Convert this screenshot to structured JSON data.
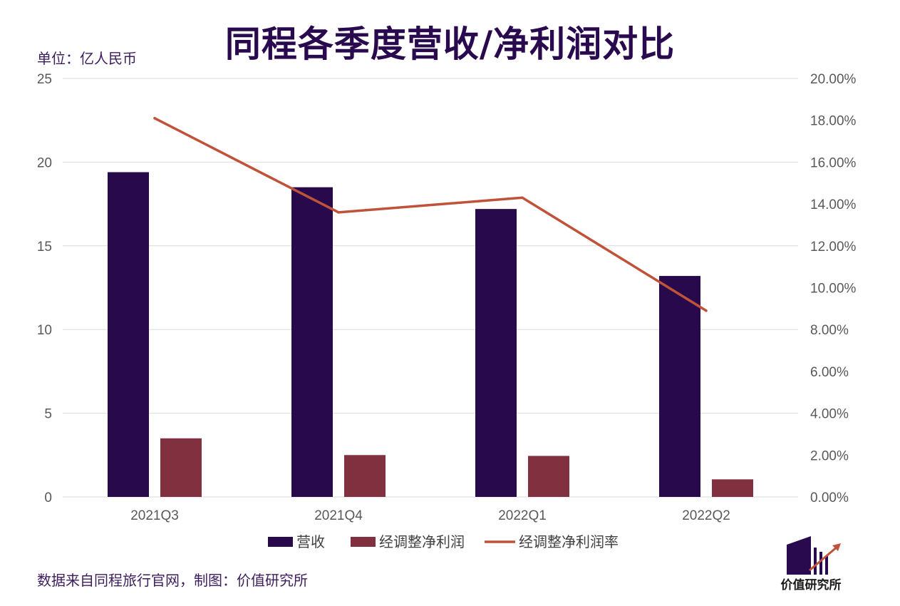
{
  "title": "同程各季度营收/净利润对比",
  "unit_label": "单位：亿人民币",
  "source_note": "数据来自同程旅行官网，制图：价值研究所",
  "logo_text": "价值研究所",
  "colors": {
    "revenue": "#280a4c",
    "net_profit": "#80303e",
    "margin_line": "#c0523a",
    "title": "#2a0a4e"
  },
  "chart_data": {
    "type": "bar",
    "categories": [
      "2021Q3",
      "2021Q4",
      "2022Q1",
      "2022Q2"
    ],
    "series": [
      {
        "name": "营收",
        "type": "bar",
        "axis": "left",
        "values": [
          19.4,
          18.5,
          17.2,
          13.2
        ]
      },
      {
        "name": "经调整净利润",
        "type": "bar",
        "axis": "left",
        "values": [
          3.5,
          2.5,
          2.45,
          1.05
        ]
      },
      {
        "name": "经调整净利润率",
        "type": "line",
        "axis": "right",
        "values": [
          18.1,
          13.6,
          14.3,
          8.9
        ]
      }
    ],
    "y_left": {
      "min": 0,
      "max": 25,
      "ticks": [
        "0",
        "5",
        "10",
        "15",
        "20",
        "25"
      ]
    },
    "y_right": {
      "min": 0,
      "max": 20,
      "ticks": [
        "0.00%",
        "2.00%",
        "4.00%",
        "6.00%",
        "8.00%",
        "10.00%",
        "12.00%",
        "14.00%",
        "16.00%",
        "18.00%",
        "20.00%"
      ]
    },
    "grid": true,
    "legend_position": "bottom"
  }
}
